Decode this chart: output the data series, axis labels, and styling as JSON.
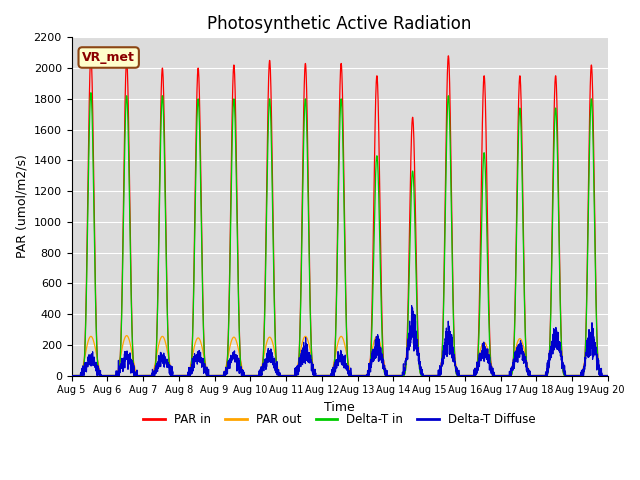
{
  "title": "Photosynthetic Active Radiation",
  "xlabel": "Time",
  "ylabel": "PAR (umol/m2/s)",
  "ylim": [
    0,
    2200
  ],
  "yticks": [
    0,
    200,
    400,
    600,
    800,
    1000,
    1200,
    1400,
    1600,
    1800,
    2000,
    2200
  ],
  "annotation": "VR_met",
  "colors": {
    "par_in": "#FF0000",
    "par_out": "#FFA500",
    "delta_t_in": "#00CC00",
    "delta_t_diffuse": "#0000CD"
  },
  "legend_labels": [
    "PAR in",
    "PAR out",
    "Delta-T in",
    "Delta-T Diffuse"
  ],
  "background_color": "#DCDCDC",
  "x_tick_labels": [
    "Aug 5",
    "Aug 6",
    "Aug 7",
    "Aug 8",
    "Aug 9",
    "Aug 10",
    "Aug 11",
    "Aug 12",
    "Aug 13",
    "Aug 14",
    "Aug 15",
    "Aug 16",
    "Aug 17",
    "Aug 18",
    "Aug 19",
    "Aug 20"
  ],
  "title_fontsize": 12,
  "axis_label_fontsize": 9,
  "tick_fontsize": 8
}
